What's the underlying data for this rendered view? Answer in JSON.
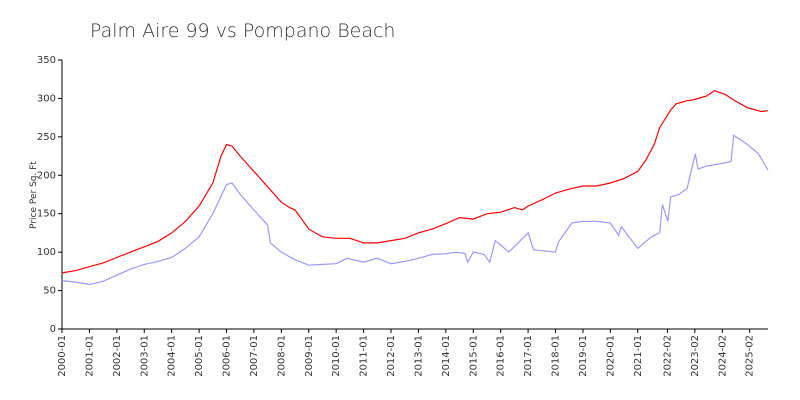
{
  "chart_data": {
    "type": "line",
    "title": "Palm Aire 99 vs Pompano Beach",
    "y_label": "Price Per Sq. Ft",
    "xlim": [
      2000.0,
      2025.75
    ],
    "ylim": [
      0,
      350
    ],
    "yticks": [
      0,
      50,
      100,
      150,
      200,
      250,
      300,
      350
    ],
    "xticks": [
      {
        "value": 2000.0,
        "label": "2000-01"
      },
      {
        "value": 2001.0,
        "label": "2001-01"
      },
      {
        "value": 2002.0,
        "label": "2002-01"
      },
      {
        "value": 2003.0,
        "label": "2003-01"
      },
      {
        "value": 2004.0,
        "label": "2004-01"
      },
      {
        "value": 2005.0,
        "label": "2005-01"
      },
      {
        "value": 2006.0,
        "label": "2006-01"
      },
      {
        "value": 2007.0,
        "label": "2007-01"
      },
      {
        "value": 2008.0,
        "label": "2008-01"
      },
      {
        "value": 2009.0,
        "label": "2009-01"
      },
      {
        "value": 2010.0,
        "label": "2010-01"
      },
      {
        "value": 2011.0,
        "label": "2011-01"
      },
      {
        "value": 2012.0,
        "label": "2012-01"
      },
      {
        "value": 2013.0,
        "label": "2013-01"
      },
      {
        "value": 2014.0,
        "label": "2014-01"
      },
      {
        "value": 2015.0,
        "label": "2015-01"
      },
      {
        "value": 2016.0,
        "label": "2016-01"
      },
      {
        "value": 2017.0,
        "label": "2017-01"
      },
      {
        "value": 2018.0,
        "label": "2018-01"
      },
      {
        "value": 2019.0,
        "label": "2019-01"
      },
      {
        "value": 2020.0,
        "label": "2020-01"
      },
      {
        "value": 2021.0,
        "label": "2021-01"
      },
      {
        "value": 2022.083,
        "label": "2022-02"
      },
      {
        "value": 2023.083,
        "label": "2023-02"
      },
      {
        "value": 2024.083,
        "label": "2024-02"
      },
      {
        "value": 2025.083,
        "label": "2025-02"
      }
    ],
    "series": [
      {
        "color": "#ff0000",
        "x": [
          2000.0,
          2000.5,
          2001.0,
          2001.5,
          2002.0,
          2002.5,
          2003.0,
          2003.5,
          2004.0,
          2004.5,
          2005.0,
          2005.5,
          2005.8,
          2006.0,
          2006.2,
          2006.5,
          2007.0,
          2007.5,
          2008.0,
          2008.3,
          2008.5,
          2009.0,
          2009.5,
          2010.0,
          2010.5,
          2011.0,
          2011.5,
          2012.0,
          2012.5,
          2013.0,
          2013.5,
          2014.0,
          2014.5,
          2015.0,
          2015.5,
          2016.0,
          2016.5,
          2016.8,
          2017.0,
          2017.5,
          2018.0,
          2018.5,
          2019.0,
          2019.5,
          2020.0,
          2020.5,
          2021.0,
          2021.3,
          2021.6,
          2021.8,
          2022.2,
          2022.4,
          2022.8,
          2023.0,
          2023.5,
          2023.8,
          2024.2,
          2024.5,
          2025.0,
          2025.5,
          2025.75
        ],
        "values": [
          73,
          76,
          81,
          86,
          93,
          100,
          107,
          114,
          125,
          140,
          160,
          190,
          225,
          240,
          238,
          225,
          205,
          185,
          165,
          158,
          155,
          130,
          120,
          118,
          118,
          112,
          112,
          115,
          118,
          125,
          130,
          137,
          145,
          143,
          150,
          152,
          158,
          155,
          160,
          168,
          177,
          182,
          186,
          186,
          190,
          196,
          205,
          220,
          240,
          262,
          285,
          293,
          297,
          298,
          303,
          310,
          305,
          298,
          288,
          283,
          284
        ]
      },
      {
        "color": "#9999ff",
        "x": [
          2000.0,
          2000.5,
          2001.0,
          2001.5,
          2002.0,
          2002.5,
          2003.0,
          2003.5,
          2004.0,
          2004.5,
          2005.0,
          2005.5,
          2006.0,
          2006.2,
          2006.5,
          2007.0,
          2007.5,
          2007.6,
          2008.0,
          2008.5,
          2009.0,
          2009.5,
          2010.0,
          2010.4,
          2011.0,
          2011.5,
          2012.0,
          2012.5,
          2013.0,
          2013.5,
          2014.0,
          2014.4,
          2014.7,
          2014.8,
          2015.0,
          2015.4,
          2015.6,
          2015.8,
          2016.3,
          2017.0,
          2017.2,
          2018.0,
          2018.1,
          2018.6,
          2019.0,
          2019.5,
          2020.0,
          2020.3,
          2020.4,
          2021.0,
          2021.5,
          2021.8,
          2021.9,
          2022.1,
          2022.2,
          2022.5,
          2022.8,
          2023.1,
          2023.2,
          2023.5,
          2024.0,
          2024.4,
          2024.5,
          2025.0,
          2025.4,
          2025.75
        ],
        "values": [
          63,
          61,
          58,
          62,
          70,
          78,
          84,
          88,
          93,
          105,
          120,
          150,
          188,
          190,
          175,
          155,
          135,
          112,
          100,
          90,
          83,
          84,
          85,
          92,
          87,
          92,
          85,
          88,
          92,
          97,
          98,
          100,
          98,
          87,
          100,
          97,
          87,
          115,
          100,
          125,
          103,
          100,
          113,
          138,
          140,
          140,
          138,
          122,
          133,
          105,
          120,
          125,
          162,
          140,
          172,
          175,
          183,
          228,
          208,
          212,
          215,
          218,
          252,
          240,
          228,
          207
        ]
      }
    ]
  }
}
